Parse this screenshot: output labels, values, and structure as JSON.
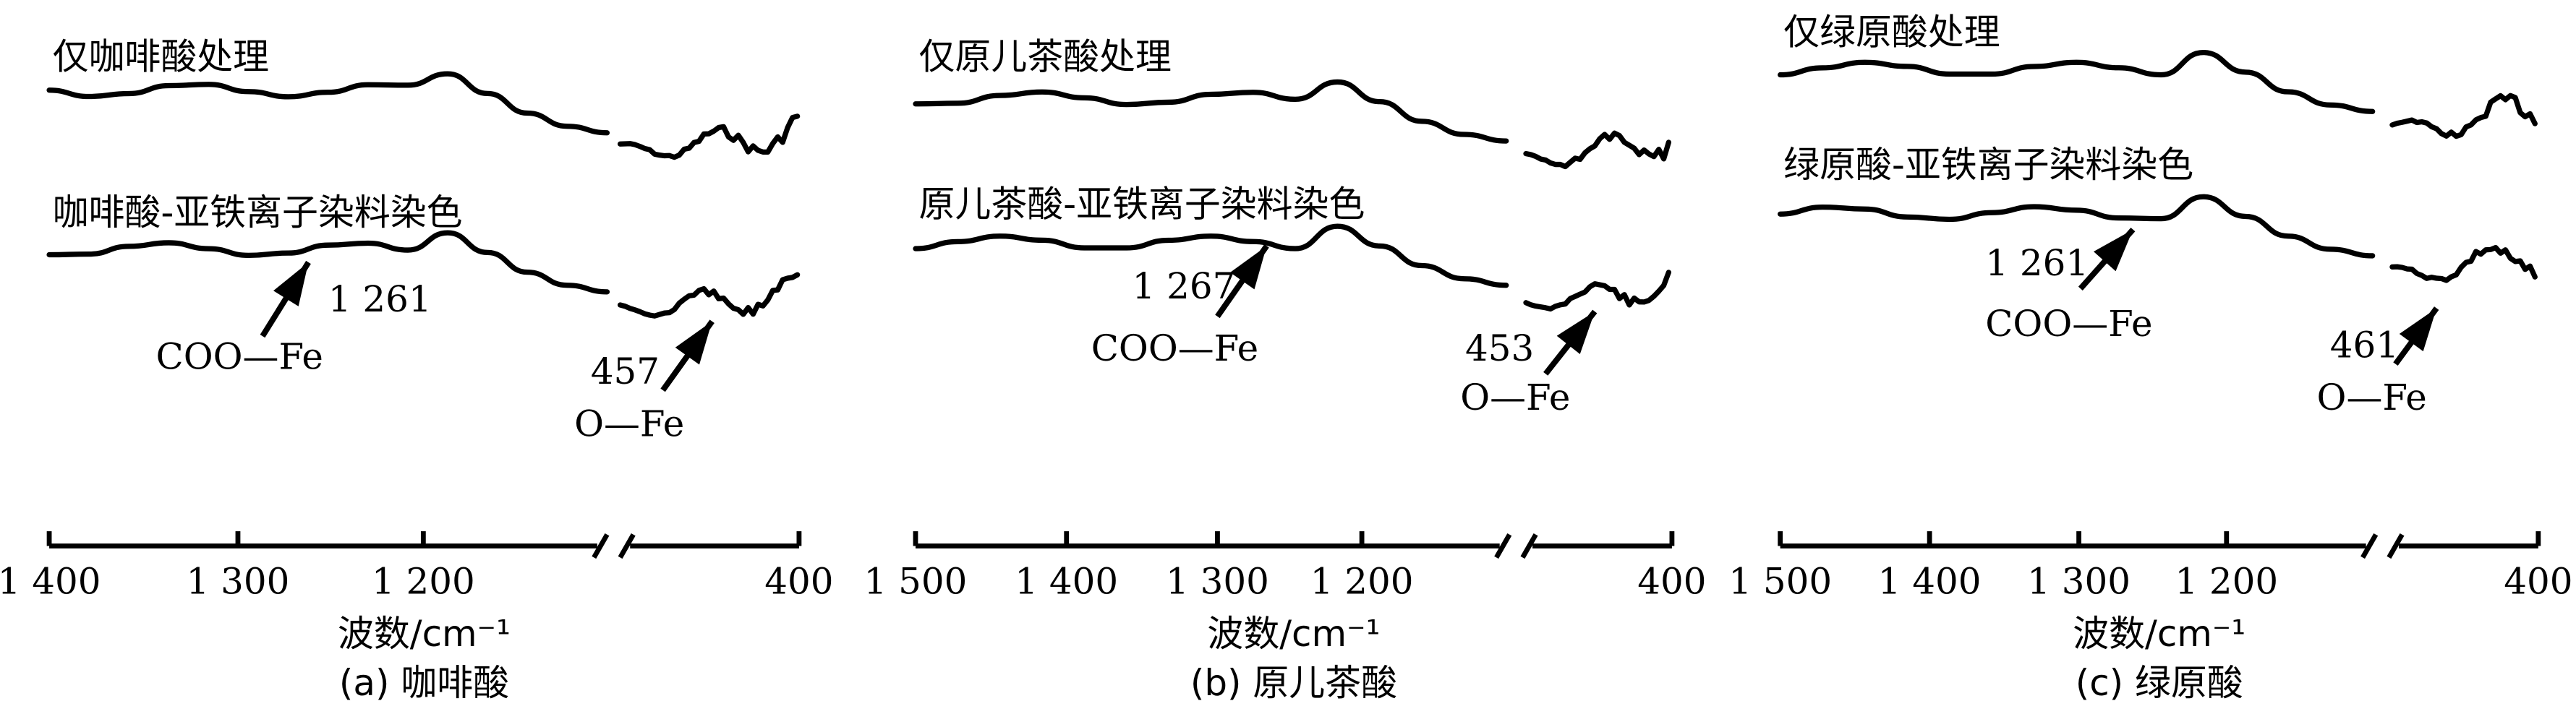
{
  "chart_data": [
    {
      "type": "line",
      "caption": "(a) 咖啡酸",
      "xlabel": "波数/cm⁻¹",
      "x_ticks": [
        "1 400",
        "1 300",
        "1 200",
        "400"
      ],
      "axis_break": true,
      "series": [
        {
          "name": "仅咖啡酸处理"
        },
        {
          "name": "咖啡酸-亚铁离子染料染色"
        }
      ],
      "annotations": [
        {
          "wavenumber": "1 261",
          "assignment": "COO—Fe"
        },
        {
          "wavenumber": "457",
          "assignment": "O—Fe"
        }
      ]
    },
    {
      "type": "line",
      "caption": "(b) 原儿茶酸",
      "xlabel": "波数/cm⁻¹",
      "x_ticks": [
        "1 500",
        "1 400",
        "1 300",
        "1 200",
        "400"
      ],
      "axis_break": true,
      "series": [
        {
          "name": "仅原儿茶酸处理"
        },
        {
          "name": "原儿茶酸-亚铁离子染料染色"
        }
      ],
      "annotations": [
        {
          "wavenumber": "1 267",
          "assignment": "COO—Fe"
        },
        {
          "wavenumber": "453",
          "assignment": "O—Fe"
        }
      ]
    },
    {
      "type": "line",
      "caption": "(c) 绿原酸",
      "xlabel": "波数/cm⁻¹",
      "x_ticks": [
        "1 500",
        "1 400",
        "1 300",
        "1 200",
        "400"
      ],
      "axis_break": true,
      "series": [
        {
          "name": "仅绿原酸处理"
        },
        {
          "name": "绿原酸-亚铁离子染料染色"
        }
      ],
      "annotations": [
        {
          "wavenumber": "1 261",
          "assignment": "COO—Fe"
        },
        {
          "wavenumber": "461",
          "assignment": "O—Fe"
        }
      ]
    }
  ]
}
